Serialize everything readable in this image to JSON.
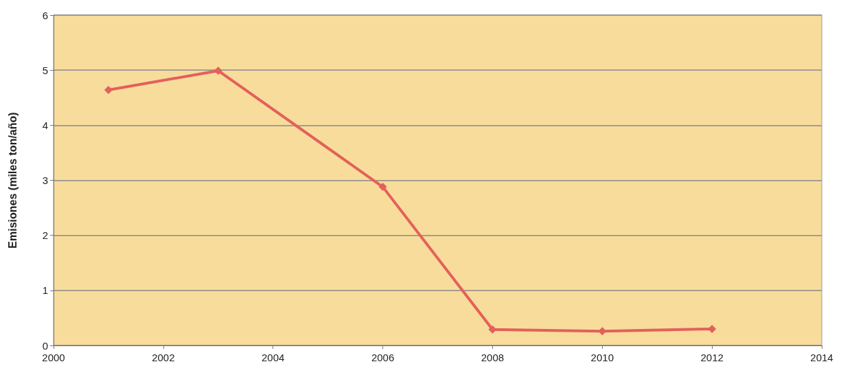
{
  "chart_data": {
    "type": "line",
    "ylabel": "Emisiones (miles ton/año)",
    "x": [
      2001,
      2003,
      2006,
      2008,
      2010,
      2012
    ],
    "series": [
      {
        "color": "#e4605a",
        "values": [
          4.64,
          4.99,
          2.88,
          0.29,
          0.26,
          0.3
        ]
      }
    ],
    "xlim": [
      2000,
      2014
    ],
    "xticks": [
      2000,
      2002,
      2004,
      2006,
      2008,
      2010,
      2012,
      2014
    ],
    "ylim": [
      0,
      6
    ],
    "yticks": [
      0,
      1,
      2,
      3,
      4,
      5,
      6
    ],
    "grid": "y",
    "marker": "diamond",
    "line_style": "solid"
  }
}
